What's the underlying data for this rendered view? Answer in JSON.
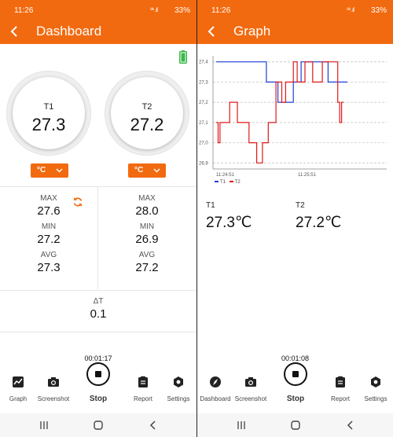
{
  "colors": {
    "accent": "#f26a0f",
    "series_t1": "#1f3fd6",
    "series_t2": "#e01818"
  },
  "status_left": {
    "time": "11:26",
    "battery": "33%"
  },
  "status_right": {
    "time": "11:26",
    "battery": "33%"
  },
  "dashboard": {
    "title": "Dashboard",
    "battery_icon": "battery-full-icon",
    "gauges": [
      {
        "label": "T1",
        "value": "27.3",
        "unit": "°C"
      },
      {
        "label": "T2",
        "value": "27.2",
        "unit": "°C"
      }
    ],
    "stats": [
      {
        "max_label": "MAX",
        "max": "27.6",
        "min_label": "MIN",
        "min": "27.2",
        "avg_label": "AVG",
        "avg": "27.3"
      },
      {
        "max_label": "MAX",
        "max": "28.0",
        "min_label": "MIN",
        "min": "26.9",
        "avg_label": "AVG",
        "avg": "27.2"
      }
    ],
    "delta_label": "ΔT",
    "delta_value": "0.1",
    "timer": "00:01:17",
    "stop_label": "Stop",
    "nav": [
      "Graph",
      "Screenshot",
      "Report",
      "Settings"
    ]
  },
  "graph": {
    "title": "Graph",
    "readings": [
      {
        "label": "T1",
        "value": "27.3℃"
      },
      {
        "label": "T2",
        "value": "27.2℃"
      }
    ],
    "legend": [
      "T1",
      "T2"
    ],
    "timer": "00:01:08",
    "stop_label": "Stop",
    "nav": [
      "Dashboard",
      "Screenshot",
      "Report",
      "Settings"
    ]
  },
  "chart_data": {
    "type": "line",
    "x_tick_labels": [
      "11:24:51",
      "11:25:51"
    ],
    "y_ticks": [
      "27,4",
      "27,3",
      "27,2",
      "27,1",
      "27,0",
      "26,9"
    ],
    "ylim": [
      26.87,
      27.43
    ],
    "grid": "dashed",
    "legend_position": "bottom-left",
    "series": [
      {
        "name": "T1",
        "step": true,
        "points": [
          [
            0,
            27.4
          ],
          [
            26,
            27.4
          ],
          [
            26,
            27.3
          ],
          [
            32,
            27.3
          ],
          [
            32,
            27.2
          ],
          [
            40,
            27.2
          ],
          [
            40,
            27.3
          ],
          [
            44,
            27.3
          ],
          [
            44,
            27.4
          ],
          [
            58,
            27.4
          ],
          [
            58,
            27.3
          ],
          [
            68,
            27.3
          ]
        ]
      },
      {
        "name": "T2",
        "step": true,
        "points": [
          [
            0,
            27.1
          ],
          [
            1,
            27.1
          ],
          [
            1,
            27.0
          ],
          [
            2,
            27.0
          ],
          [
            2,
            27.1
          ],
          [
            7,
            27.1
          ],
          [
            7,
            27.2
          ],
          [
            11,
            27.2
          ],
          [
            11,
            27.1
          ],
          [
            17,
            27.1
          ],
          [
            17,
            27.0
          ],
          [
            21,
            27.0
          ],
          [
            21,
            26.9
          ],
          [
            24,
            26.9
          ],
          [
            24,
            27.0
          ],
          [
            27,
            27.0
          ],
          [
            27,
            27.1
          ],
          [
            31,
            27.1
          ],
          [
            31,
            27.3
          ],
          [
            34,
            27.3
          ],
          [
            34,
            27.2
          ],
          [
            36,
            27.2
          ],
          [
            36,
            27.3
          ],
          [
            40,
            27.3
          ],
          [
            40,
            27.4
          ],
          [
            42,
            27.4
          ],
          [
            42,
            27.3
          ],
          [
            46,
            27.3
          ],
          [
            46,
            27.4
          ],
          [
            50,
            27.4
          ],
          [
            50,
            27.3
          ],
          [
            55,
            27.3
          ],
          [
            55,
            27.4
          ],
          [
            63,
            27.4
          ],
          [
            63,
            27.2
          ],
          [
            64,
            27.2
          ],
          [
            64,
            27.1
          ],
          [
            65,
            27.1
          ],
          [
            65,
            27.2
          ],
          [
            66,
            27.2
          ]
        ]
      }
    ]
  }
}
